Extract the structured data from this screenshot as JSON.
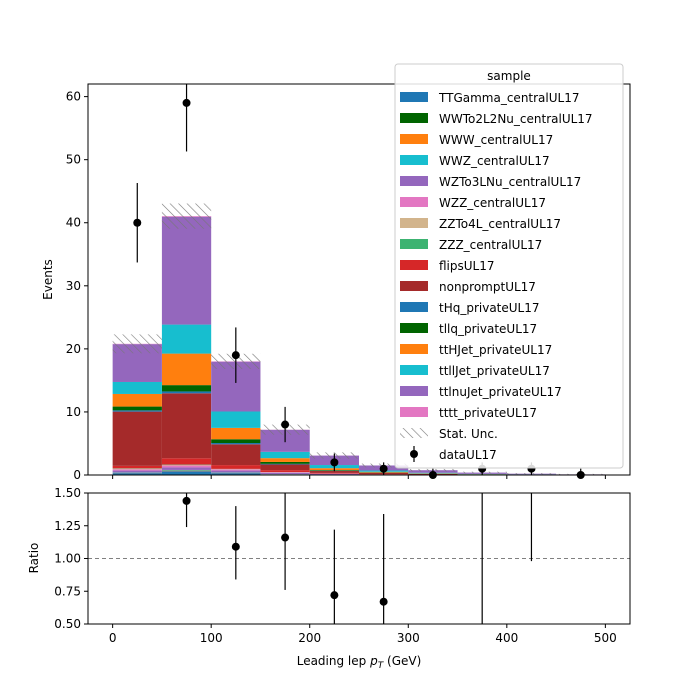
{
  "chart_data": {
    "type": "bar",
    "stacked": true,
    "x_edges": [
      0,
      50,
      100,
      150,
      200,
      250,
      300,
      350,
      400,
      450,
      500
    ],
    "xlabel": "Leading lep $p_T$ (GeV)",
    "ylabel": "Events",
    "ratio_ylabel": "Ratio",
    "xlim": [
      -25,
      525
    ],
    "ylim": [
      0,
      62
    ],
    "ratio_ylim": [
      0.5,
      1.5
    ],
    "xticks": [
      "0",
      "100",
      "200",
      "300",
      "400",
      "500"
    ],
    "yticks": [
      "0",
      "10",
      "20",
      "30",
      "40",
      "50",
      "60"
    ],
    "ratio_yticks": [
      "0.50",
      "0.75",
      "1.00",
      "1.25",
      "1.50"
    ],
    "legend": {
      "title": "sample",
      "position": "top-right"
    },
    "series": [
      {
        "name": "TTGamma_centralUL17",
        "color": "#1f77b4",
        "values": [
          0.3,
          0.6,
          0.3,
          0.1,
          0.05,
          0.02,
          0.01,
          0,
          0,
          0
        ]
      },
      {
        "name": "WWTo2L2Nu_centralUL17",
        "color": "#006400",
        "values": [
          0,
          0,
          0,
          0,
          0,
          0,
          0,
          0,
          0,
          0
        ]
      },
      {
        "name": "WWW_centralUL17",
        "color": "#ff7f0e",
        "values": [
          0.05,
          0.1,
          0.05,
          0.02,
          0.01,
          0,
          0,
          0,
          0,
          0
        ]
      },
      {
        "name": "WWZ_centralUL17",
        "color": "#17becf",
        "values": [
          0.05,
          0.1,
          0.05,
          0.02,
          0.01,
          0,
          0,
          0,
          0,
          0
        ]
      },
      {
        "name": "WZTo3LNu_centralUL17",
        "color": "#9467bd",
        "values": [
          0.3,
          0.4,
          0.3,
          0.2,
          0.1,
          0.05,
          0.03,
          0.02,
          0.01,
          0
        ]
      },
      {
        "name": "WZZ_centralUL17",
        "color": "#e377c2",
        "values": [
          0.2,
          0.3,
          0.2,
          0.1,
          0.05,
          0.02,
          0.01,
          0,
          0,
          0
        ]
      },
      {
        "name": "ZZTo4L_centralUL17",
        "color": "#d2b48c",
        "values": [
          0.1,
          0.1,
          0.05,
          0.02,
          0.01,
          0,
          0,
          0,
          0,
          0
        ]
      },
      {
        "name": "ZZZ_centralUL17",
        "color": "#3cb371",
        "values": [
          0.05,
          0.05,
          0.02,
          0.01,
          0,
          0,
          0,
          0,
          0,
          0
        ]
      },
      {
        "name": "flipsUL17",
        "color": "#d62728",
        "values": [
          0.4,
          1.0,
          0.6,
          0.3,
          0.1,
          0.05,
          0.02,
          0.01,
          0.01,
          0
        ]
      },
      {
        "name": "nonpromptUL17",
        "color": "#a52a2a",
        "values": [
          8.6,
          10.3,
          3.3,
          0.9,
          0.3,
          0.2,
          0.1,
          0.05,
          0.03,
          0.02
        ]
      },
      {
        "name": "tHq_privateUL17",
        "color": "#1f77b4",
        "values": [
          0.2,
          0.3,
          0.2,
          0.1,
          0.05,
          0.02,
          0.01,
          0,
          0,
          0
        ]
      },
      {
        "name": "tllq_privateUL17",
        "color": "#006400",
        "values": [
          0.6,
          1.0,
          0.6,
          0.3,
          0.1,
          0.05,
          0.03,
          0.02,
          0.01,
          0
        ]
      },
      {
        "name": "ttHJet_privateUL17",
        "color": "#ff7f0e",
        "values": [
          2.0,
          5.0,
          1.8,
          0.6,
          0.3,
          0.1,
          0.05,
          0.03,
          0.02,
          0.01
        ]
      },
      {
        "name": "ttllJet_privateUL17",
        "color": "#17becf",
        "values": [
          1.9,
          4.6,
          2.6,
          1.0,
          0.5,
          0.2,
          0.1,
          0.05,
          0.03,
          0.02
        ]
      },
      {
        "name": "ttlnuJet_privateUL17",
        "color": "#9467bd",
        "values": [
          6.0,
          17.1,
          7.9,
          3.5,
          1.5,
          0.8,
          0.4,
          0.2,
          0.1,
          0.05
        ]
      },
      {
        "name": "tttt_privateUL17",
        "color": "#e377c2",
        "values": [
          0.05,
          0.1,
          0.05,
          0.02,
          0.01,
          0,
          0,
          0,
          0,
          0
        ]
      }
    ],
    "stat_unc_label": "Stat. Unc.",
    "stat_unc": [
      1.5,
      2.0,
      1.2,
      0.8,
      0.5,
      0.3,
      0.2,
      0.15,
      0.1,
      0.08
    ],
    "data": {
      "name": "dataUL17",
      "x": [
        25,
        75,
        125,
        175,
        225,
        275,
        325,
        375,
        425,
        475
      ],
      "y": [
        40,
        59,
        19,
        8,
        2,
        1,
        0,
        1,
        1,
        0
      ],
      "err": [
        6.3,
        7.7,
        4.4,
        2.8,
        1.4,
        1.0,
        1.0,
        1.0,
        1.0,
        1.0
      ]
    },
    "ratio": {
      "x": [
        75,
        125,
        175,
        225,
        275
      ],
      "y": [
        1.44,
        1.09,
        1.16,
        0.72,
        0.67
      ],
      "err_low": [
        0.2,
        0.25,
        0.4,
        0.5,
        0.67
      ],
      "err_high": [
        0.2,
        0.31,
        0.4,
        0.5,
        0.67
      ],
      "extra_bars": [
        {
          "x": 375,
          "low": 0.5,
          "high": 1.5
        },
        {
          "x": 425,
          "low": 0.98,
          "high": 1.5
        }
      ],
      "reference": 1.0
    }
  }
}
